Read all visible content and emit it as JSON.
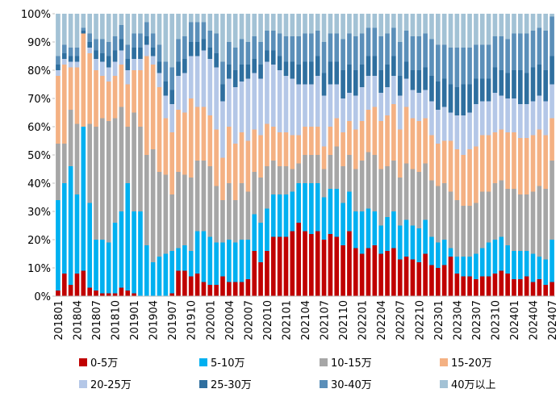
{
  "chart_data": {
    "type": "stacked-bar",
    "categories": [
      "201801",
      null,
      null,
      "201804",
      null,
      null,
      "201807",
      null,
      null,
      "201810",
      null,
      null,
      "201901",
      null,
      null,
      "201904",
      null,
      null,
      "201907",
      null,
      null,
      "201910",
      null,
      null,
      "202001",
      null,
      null,
      "202004",
      null,
      null,
      "202007",
      null,
      null,
      "202010",
      null,
      null,
      "202101",
      null,
      null,
      "202104",
      null,
      null,
      "202107",
      null,
      null,
      "202110",
      null,
      null,
      "202201",
      null,
      null,
      "202204",
      null,
      null,
      "202207",
      null,
      null,
      "202210",
      null,
      null,
      "202301",
      null,
      null,
      "202304",
      null,
      null,
      "202307",
      null,
      null,
      "202310",
      null,
      null,
      "202401",
      null,
      null,
      "202404",
      null,
      null,
      "202407"
    ],
    "series": [
      {
        "name": "0-5万",
        "color": "#c00000",
        "values": [
          2,
          8,
          4,
          8,
          9,
          3,
          2,
          1,
          1,
          1,
          3,
          2,
          1,
          0,
          0,
          0,
          0,
          0,
          1,
          9,
          9,
          7,
          8,
          5,
          4,
          4,
          7,
          5,
          5,
          5,
          6,
          16,
          12,
          16,
          21,
          21,
          21,
          23,
          26,
          23,
          22,
          23,
          20,
          22,
          21,
          18,
          23,
          17,
          15,
          17,
          18,
          15,
          16,
          17,
          13,
          14,
          13,
          12,
          15,
          11,
          10,
          11,
          14,
          8,
          7,
          7,
          6,
          7,
          7,
          8,
          9,
          8,
          6,
          6,
          7,
          5,
          6,
          4,
          5
        ]
      },
      {
        "name": "5-10万",
        "color": "#00b0f0",
        "values": [
          32,
          32,
          42,
          28,
          51,
          30,
          18,
          19,
          18,
          25,
          27,
          38,
          29,
          30,
          18,
          12,
          14,
          15,
          15,
          8,
          9,
          9,
          15,
          18,
          17,
          15,
          12,
          15,
          14,
          15,
          14,
          13,
          14,
          15,
          15,
          15,
          15,
          14,
          14,
          17,
          18,
          17,
          15,
          16,
          17,
          15,
          14,
          13,
          15,
          14,
          12,
          10,
          12,
          13,
          12,
          13,
          12,
          12,
          12,
          10,
          9,
          9,
          3,
          6,
          7,
          7,
          9,
          10,
          12,
          12,
          12,
          10,
          10,
          10,
          9,
          10,
          8,
          9,
          15
        ]
      },
      {
        "name": "10-15万",
        "color": "#a6a6a6",
        "values": [
          20,
          14,
          20,
          25,
          0,
          28,
          40,
          43,
          43,
          37,
          37,
          20,
          35,
          30,
          32,
          40,
          30,
          28,
          20,
          27,
          25,
          26,
          25,
          25,
          25,
          20,
          15,
          20,
          15,
          20,
          17,
          15,
          16,
          15,
          12,
          10,
          10,
          8,
          7,
          10,
          10,
          10,
          10,
          12,
          15,
          13,
          13,
          15,
          18,
          20,
          20,
          20,
          18,
          18,
          17,
          20,
          20,
          20,
          20,
          20,
          20,
          20,
          20,
          20,
          18,
          18,
          18,
          20,
          18,
          20,
          20,
          20,
          22,
          20,
          20,
          22,
          25,
          25,
          28
        ]
      },
      {
        "name": "15-20万",
        "color": "#f4b183",
        "values": [
          24,
          28,
          15,
          20,
          33,
          25,
          20,
          15,
          14,
          15,
          15,
          15,
          15,
          20,
          35,
          30,
          30,
          20,
          22,
          22,
          22,
          28,
          19,
          19,
          18,
          20,
          15,
          20,
          20,
          18,
          18,
          15,
          15,
          15,
          12,
          12,
          12,
          12,
          10,
          10,
          10,
          10,
          8,
          10,
          10,
          12,
          12,
          14,
          14,
          15,
          17,
          17,
          18,
          20,
          17,
          20,
          18,
          18,
          16,
          16,
          15,
          15,
          18,
          18,
          18,
          20,
          20,
          20,
          20,
          18,
          18,
          20,
          20,
          20,
          20,
          20,
          20,
          19,
          15
        ]
      },
      {
        "name": "20-25万",
        "color": "#b4c7e7",
        "values": [
          2,
          2,
          2,
          2,
          0,
          2,
          4,
          5,
          5,
          5,
          5,
          5,
          4,
          4,
          4,
          3,
          5,
          8,
          10,
          12,
          14,
          15,
          18,
          20,
          20,
          22,
          20,
          17,
          20,
          18,
          22,
          20,
          20,
          22,
          22,
          22,
          20,
          20,
          18,
          15,
          15,
          18,
          18,
          15,
          12,
          12,
          10,
          12,
          12,
          12,
          11,
          10,
          10,
          10,
          12,
          10,
          10,
          10,
          10,
          12,
          12,
          12,
          10,
          12,
          14,
          13,
          15,
          12,
          12,
          14,
          12,
          12,
          12,
          12,
          12,
          12,
          12,
          12,
          12
        ]
      },
      {
        "name": "25-30万",
        "color": "#2f6f9f",
        "values": [
          2,
          2,
          2,
          2,
          1,
          2,
          3,
          3,
          4,
          4,
          4,
          4,
          4,
          4,
          3,
          3,
          4,
          5,
          5,
          5,
          5,
          5,
          5,
          4,
          4,
          5,
          6,
          5,
          6,
          6,
          5,
          5,
          5,
          4,
          5,
          5,
          5,
          6,
          7,
          8,
          8,
          7,
          8,
          8,
          8,
          10,
          10,
          9,
          8,
          7,
          7,
          8,
          8,
          7,
          7,
          6,
          7,
          8,
          8,
          9,
          10,
          10,
          10,
          10,
          11,
          10,
          9,
          8,
          8,
          9,
          9,
          9,
          10,
          12,
          11,
          12,
          11,
          11,
          10
        ]
      },
      {
        "name": "30-40万",
        "color": "#5b8fb9",
        "values": [
          3,
          3,
          3,
          3,
          1,
          3,
          4,
          5,
          5,
          5,
          5,
          5,
          5,
          5,
          5,
          5,
          6,
          7,
          8,
          8,
          8,
          7,
          7,
          6,
          6,
          7,
          8,
          8,
          8,
          9,
          8,
          8,
          8,
          7,
          7,
          8,
          9,
          9,
          10,
          10,
          10,
          9,
          11,
          10,
          10,
          11,
          11,
          12,
          11,
          10,
          10,
          12,
          11,
          10,
          12,
          11,
          12,
          12,
          12,
          13,
          13,
          12,
          13,
          14,
          13,
          13,
          12,
          12,
          12,
          11,
          12,
          12,
          13,
          13,
          14,
          13,
          13,
          14,
          14
        ]
      },
      {
        "name": "40万以上",
        "color": "#a3c2d5",
        "values": [
          15,
          11,
          12,
          12,
          5,
          7,
          9,
          9,
          10,
          8,
          4,
          11,
          7,
          7,
          3,
          7,
          11,
          17,
          19,
          9,
          8,
          3,
          3,
          3,
          6,
          7,
          17,
          10,
          12,
          9,
          10,
          8,
          10,
          6,
          6,
          7,
          8,
          8,
          8,
          7,
          7,
          6,
          10,
          7,
          7,
          9,
          7,
          8,
          7,
          5,
          5,
          8,
          7,
          5,
          10,
          6,
          8,
          8,
          7,
          9,
          11,
          11,
          12,
          12,
          12,
          12,
          11,
          11,
          11,
          8,
          8,
          9,
          7,
          7,
          7,
          6,
          5,
          6,
          1
        ]
      }
    ],
    "ylim": [
      0,
      100
    ],
    "yticks": [
      {
        "value": 0,
        "label": "0%"
      },
      {
        "value": 10,
        "label": "10%"
      },
      {
        "value": 20,
        "label": "20%"
      },
      {
        "value": 30,
        "label": "30%"
      },
      {
        "value": 40,
        "label": "40%"
      },
      {
        "value": 50,
        "label": "50%"
      },
      {
        "value": 60,
        "label": "60%"
      },
      {
        "value": 70,
        "label": "70%"
      },
      {
        "value": 80,
        "label": "80%"
      },
      {
        "value": 90,
        "label": "90%"
      },
      {
        "value": 100,
        "label": "100%"
      }
    ]
  }
}
